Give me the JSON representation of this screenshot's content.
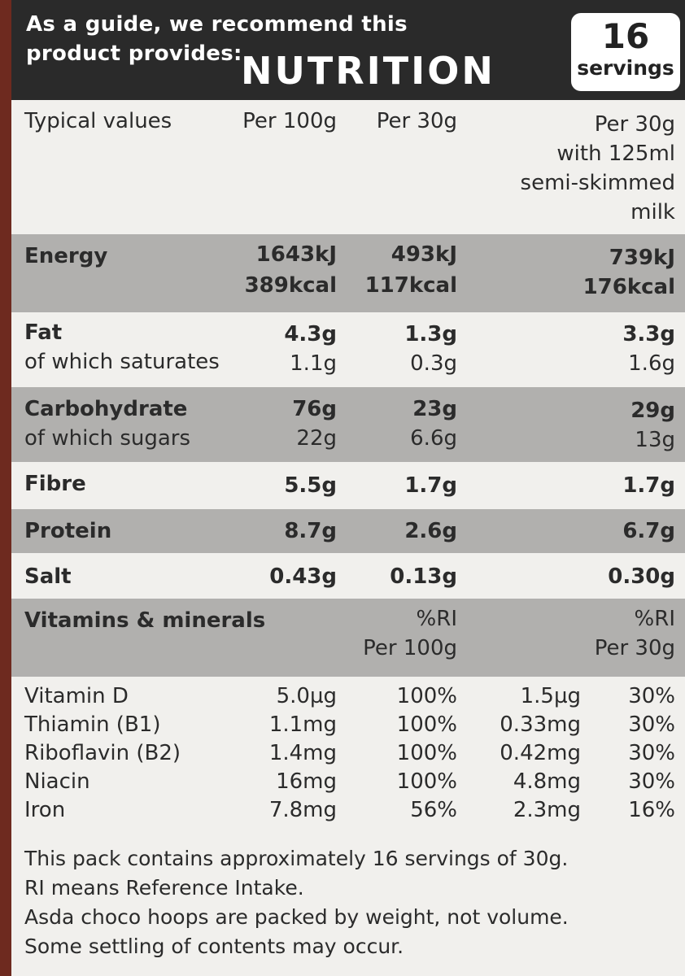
{
  "header": {
    "guide_text": "As a guide, we recommend this product provides:",
    "title": "NUTRITION",
    "servings_number": "16",
    "servings_label": "servings"
  },
  "columns": {
    "typical": "Typical values",
    "per100": "Per 100g",
    "per30": "Per 30g",
    "per30milk": [
      "Per 30g",
      "with 125ml",
      "semi-skimmed",
      "milk"
    ]
  },
  "nutrients": {
    "energy": {
      "label": "Energy",
      "per100_kj": "1643kJ",
      "per100_kcal": "389kcal",
      "per30_kj": "493kJ",
      "per30_kcal": "117kcal",
      "milk_kj": "739kJ",
      "milk_kcal": "176kcal"
    },
    "fat": {
      "label": "Fat",
      "per100": "4.3g",
      "per30": "1.3g",
      "milk": "3.3g"
    },
    "saturates": {
      "label": "of which saturates",
      "per100": "1.1g",
      "per30": "0.3g",
      "milk": "1.6g"
    },
    "carbohydrate": {
      "label": "Carbohydrate",
      "per100": "76g",
      "per30": "23g",
      "milk": "29g"
    },
    "sugars": {
      "label": "of which sugars",
      "per100": "22g",
      "per30": "6.6g",
      "milk": "13g"
    },
    "fibre": {
      "label": "Fibre",
      "per100": "5.5g",
      "per30": "1.7g",
      "milk": "1.7g"
    },
    "protein": {
      "label": "Protein",
      "per100": "8.7g",
      "per30": "2.6g",
      "milk": "6.7g"
    },
    "salt": {
      "label": "Salt",
      "per100": "0.43g",
      "per30": "0.13g",
      "milk": "0.30g"
    }
  },
  "vitamins_header": {
    "label": "Vitamins & minerals",
    "ri100_line1": "%RI",
    "ri100_line2": "Per 100g",
    "ri30_line1": "%RI",
    "ri30_line2": "Per 30g"
  },
  "vitamins": [
    {
      "name": "Vitamin D",
      "per100": "5.0µg",
      "ri100": "100%",
      "per30": "1.5µg",
      "ri30": "30%"
    },
    {
      "name": "Thiamin (B1)",
      "per100": "1.1mg",
      "ri100": "100%",
      "per30": "0.33mg",
      "ri30": "30%"
    },
    {
      "name": "Riboflavin (B2)",
      "per100": "1.4mg",
      "ri100": "100%",
      "per30": "0.42mg",
      "ri30": "30%"
    },
    {
      "name": "Niacin",
      "per100": "16mg",
      "ri100": "100%",
      "per30": "4.8mg",
      "ri30": "30%"
    },
    {
      "name": "Iron",
      "per100": "7.8mg",
      "ri100": "56%",
      "per30": "2.3mg",
      "ri30": "16%"
    }
  ],
  "footer": [
    "This pack contains approximately 16 servings of 30g.",
    "RI means Reference Intake.",
    "Asda choco hoops are packed by weight, not volume.",
    "Some settling of contents may occur."
  ]
}
